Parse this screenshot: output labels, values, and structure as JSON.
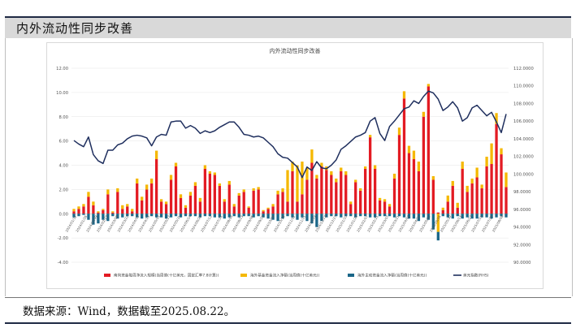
{
  "header": {
    "title": "内外流动性同步改善"
  },
  "footer": {
    "source": "数据来源：Wind，数据截至2025.08.22。"
  },
  "chart_data": {
    "type": "bar",
    "title": "内外流动性同步改善",
    "y_left": {
      "min": -4,
      "max": 12,
      "step": 2
    },
    "y_right": {
      "min": 90,
      "max": 112,
      "step": 2
    },
    "y_left_ticks": [
      "-4.00",
      "-2.00",
      "0.00",
      "2.00",
      "4.00",
      "6.00",
      "8.00",
      "10.00",
      "12.00"
    ],
    "y_right_ticks": [
      "90.0000",
      "92.0000",
      "94.0000",
      "96.0000",
      "98.0000",
      "100.0000",
      "102.0000",
      "104.0000",
      "106.0000",
      "108.0000",
      "110.0000",
      "112.0000"
    ],
    "x_ticks": [
      "2024/01/12",
      "2024/01/26",
      "2024/02/09",
      "2024/02/23",
      "2024/03/08",
      "2024/03/22",
      "2024/04/05",
      "2024/04/19",
      "2024/05/03",
      "2024/05/17",
      "2024/05/31",
      "2024/06/14",
      "2024/06/28",
      "2024/07/12",
      "2024/07/26",
      "2024/08/09",
      "2024/08/23",
      "2024/09/06",
      "2024/09/20",
      "2024/10/04",
      "2024/10/18",
      "2024/11/01",
      "2024/11/15",
      "2024/11/29",
      "2024/12/13",
      "2024/12/27",
      "2025/01/10",
      "2025/01/24",
      "2025/02/07",
      "2025/02/21",
      "2025/03/07",
      "2025/03/21",
      "2025/04/04",
      "2025/04/18",
      "2025/05/02",
      "2025/05/16",
      "2025/05/30",
      "2025/06/13",
      "2025/06/27",
      "2025/07/11",
      "2025/07/25",
      "2025/08/08"
    ],
    "legend": [
      {
        "name": "南向资金每周净流入规模(当周值(十亿美元，固定汇率7.8计算))",
        "color": "#e31b23",
        "kind": "bar"
      },
      {
        "name": "海外基金资金流入净额(当周值(十亿美元))",
        "color": "#f5b800",
        "kind": "bar"
      },
      {
        "name": "海外主动资金流入净额(当周值(十亿美元))",
        "color": "#1a6688",
        "kind": "bar"
      },
      {
        "name": "美元指数(RHS)",
        "color": "#1f2f5e",
        "kind": "line"
      }
    ],
    "legend_position": "bottom",
    "series": [
      {
        "name": "南向资金每周净流入规模(当周值(十亿美元，固定汇率7.8计算))",
        "values": [
          0.2,
          0.4,
          0.6,
          1.4,
          0.7,
          0.1,
          0.3,
          1.6,
          0.1,
          1.8,
          0.4,
          0.6,
          0.2,
          2.5,
          1.1,
          2.0,
          2.5,
          4.5,
          1.0,
          0.8,
          2.8,
          3.9,
          1.3,
          0.5,
          1.5,
          2.3,
          1.0,
          3.7,
          3.3,
          3.2,
          2.3,
          1.0,
          2.4,
          0.6,
          1.5,
          1.8,
          0.5,
          1.9,
          2.0,
          0.2,
          0.4,
          0.6,
          1.6,
          1.8,
          1.0,
          3.5,
          1.0,
          1.6,
          2.8,
          4.2,
          2.9,
          3.9,
          3.6,
          3.2,
          2.6,
          3.5,
          3.2,
          0.8,
          2.6,
          1.9,
          3.7,
          6.3,
          3.7,
          1.1,
          1.0,
          0.6,
          2.9,
          6.5,
          9.5,
          5.0,
          4.5,
          3.5,
          8.0,
          10.5,
          2.8,
          0.1,
          0.3,
          1.0,
          2.3,
          0.5,
          3.7,
          1.8,
          2.5,
          3.0,
          2.1,
          3.9,
          4.1,
          7.4,
          4.9,
          2.2
        ]
      },
      {
        "name": "海外基金资金流入净额(当周值(十亿美元))",
        "values": [
          0.2,
          0.2,
          0.2,
          0.4,
          0.3,
          0.1,
          0.1,
          0.4,
          0.1,
          0.3,
          0.3,
          0.2,
          0.2,
          0.4,
          0.3,
          0.4,
          0.4,
          0.7,
          0.2,
          0.2,
          0.4,
          0.3,
          0.3,
          0.2,
          0.3,
          0.3,
          0.3,
          0.3,
          0.2,
          0.2,
          0.2,
          0.2,
          0.3,
          0.2,
          0.2,
          0.2,
          0.1,
          0.2,
          0.2,
          0.1,
          0.1,
          0.2,
          0.3,
          0.3,
          2.6,
          0.8,
          3.0,
          2.7,
          1.0,
          1.1,
          0.3,
          0.3,
          0.3,
          0.3,
          0.3,
          0.3,
          0.3,
          0.2,
          0.2,
          0.2,
          0.2,
          0.2,
          0.3,
          0.2,
          0.2,
          0.2,
          0.4,
          0.6,
          0.6,
          0.6,
          0.7,
          0.8,
          0.4,
          0.2,
          0.3,
          -1.5,
          0.2,
          0.5,
          0.4,
          0.4,
          0.6,
          0.5,
          0.4,
          0.8,
          0.3,
          0.8,
          1.7,
          0.9,
          0.5,
          1.2
        ]
      },
      {
        "name": "海外主动资金流入净额(当周值(十亿美元))",
        "values": [
          -0.3,
          -0.2,
          -0.1,
          -0.5,
          -0.9,
          -0.8,
          -0.5,
          -0.6,
          -0.2,
          -0.4,
          -0.3,
          -0.2,
          -0.2,
          -0.3,
          -0.4,
          -0.3,
          -0.2,
          -0.3,
          -0.3,
          -0.4,
          -0.3,
          -0.2,
          -0.3,
          -0.2,
          -0.2,
          -0.2,
          -0.3,
          -0.2,
          -0.2,
          -0.3,
          -0.3,
          -0.4,
          -0.3,
          -0.2,
          -0.3,
          -0.2,
          -0.2,
          -0.3,
          -0.2,
          -0.3,
          -0.4,
          -0.5,
          -0.6,
          -0.4,
          -0.2,
          -0.3,
          -0.5,
          -0.3,
          -0.6,
          -0.8,
          -1.1,
          -0.6,
          -0.3,
          -0.2,
          -0.2,
          -0.3,
          -0.2,
          -0.2,
          -0.3,
          -0.2,
          -0.2,
          -0.3,
          -0.3,
          -0.2,
          -0.2,
          -0.2,
          -0.3,
          -0.2,
          -0.3,
          -0.4,
          -0.4,
          -0.6,
          -0.3,
          -0.5,
          -1.3,
          -0.7,
          -0.2,
          -0.3,
          -0.4,
          -0.2,
          -0.4,
          -0.3,
          -0.4,
          -0.4,
          -0.3,
          -0.3,
          -0.4,
          -0.3,
          -0.2,
          -0.3
        ]
      },
      {
        "name": "美元指数(RHS)",
        "values": [
          103.8,
          103.4,
          103.1,
          104.2,
          102.2,
          101.5,
          101.2,
          102.7,
          102.7,
          103.3,
          103.5,
          104.0,
          104.3,
          104.4,
          104.3,
          104.1,
          103.2,
          104.2,
          104.5,
          104.4,
          105.9,
          106.0,
          106.0,
          105.2,
          105.5,
          105.2,
          104.6,
          104.9,
          104.7,
          104.9,
          105.3,
          105.6,
          105.9,
          105.9,
          105.3,
          104.5,
          104.4,
          104.2,
          104.3,
          104.1,
          103.6,
          103.1,
          102.3,
          101.9,
          101.8,
          101.3,
          100.8,
          99.6,
          100.8,
          100.4,
          101.4,
          100.7,
          100.6,
          101.0,
          101.6,
          102.8,
          103.2,
          103.7,
          104.2,
          104.4,
          104.7,
          106.0,
          106.4,
          104.6,
          103.8,
          105.4,
          106.0,
          106.7,
          107.4,
          107.6,
          108.3,
          108.0,
          108.8,
          109.4,
          109.2,
          108.5,
          107.2,
          107.6,
          108.2,
          107.5,
          106.0,
          106.4,
          107.5,
          107.8,
          107.2,
          106.6,
          107.0,
          105.9,
          104.7,
          106.8
        ]
      }
    ]
  }
}
